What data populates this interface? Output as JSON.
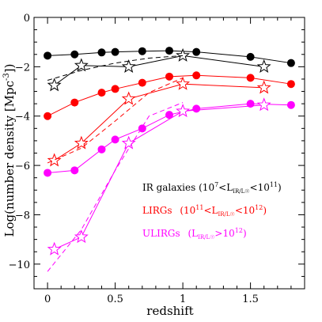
{
  "chart_data": {
    "type": "line",
    "xlabel": "redshift",
    "ylabel": "Log(number density [Mpc",
    "ylabel_exp": "-3",
    "ylabel_close": "])",
    "xlim": [
      -0.1,
      1.9
    ],
    "ylim": [
      -11,
      0
    ],
    "x_major_ticks": [
      0,
      0.5,
      1,
      1.5
    ],
    "x_tick_labels": [
      "0",
      "0.5",
      "1",
      "1.5"
    ],
    "y_major_ticks": [
      0,
      -2,
      -4,
      -6,
      -8,
      -10
    ],
    "y_tick_labels": [
      "0",
      "−2",
      "−4",
      "−6",
      "−8",
      "−10"
    ],
    "grid": false,
    "series": [
      {
        "name": "IR galaxies",
        "color": "#000000",
        "marker": "filled-circle",
        "x": [
          0.0,
          0.2,
          0.4,
          0.5,
          0.7,
          0.9,
          1.1,
          1.5,
          1.8
        ],
        "y": [
          -1.55,
          -1.5,
          -1.42,
          -1.4,
          -1.37,
          -1.35,
          -1.4,
          -1.6,
          -1.85
        ]
      },
      {
        "color": "#000000",
        "marker": "open-star",
        "x": [
          0.05,
          0.25,
          0.6,
          1.0,
          1.6
        ],
        "y": [
          -2.75,
          -1.95,
          -2.0,
          -1.55,
          -2.0
        ]
      },
      {
        "color": "#000000",
        "marker": "none",
        "dash": true,
        "x": [
          0.0,
          0.25,
          0.5,
          0.75,
          1.0
        ],
        "y": [
          -2.55,
          -2.15,
          -1.85,
          -1.65,
          -1.55
        ]
      },
      {
        "name": "LIRGs",
        "color": "#ff0000",
        "marker": "filled-circle",
        "x": [
          0.0,
          0.2,
          0.4,
          0.5,
          0.7,
          0.9,
          1.1,
          1.5,
          1.8
        ],
        "y": [
          -4.0,
          -3.45,
          -3.05,
          -2.9,
          -2.65,
          -2.4,
          -2.35,
          -2.45,
          -2.7
        ]
      },
      {
        "color": "#ff0000",
        "marker": "open-star",
        "x": [
          0.05,
          0.25,
          0.6,
          1.0,
          1.6
        ],
        "y": [
          -5.8,
          -5.1,
          -3.3,
          -2.7,
          -2.85
        ]
      },
      {
        "color": "#ff0000",
        "marker": "none",
        "dash": true,
        "x": [
          0.0,
          0.25,
          0.5,
          0.75,
          1.0
        ],
        "y": [
          -5.9,
          -5.3,
          -4.2,
          -3.05,
          -2.45
        ]
      },
      {
        "name": "ULIRGs",
        "color": "#ff00ff",
        "marker": "filled-circle",
        "x": [
          0.0,
          0.2,
          0.4,
          0.5,
          0.7,
          0.9,
          1.1,
          1.5,
          1.8
        ],
        "y": [
          -6.3,
          -6.2,
          -5.35,
          -4.95,
          -4.5,
          -3.95,
          -3.7,
          -3.5,
          -3.55
        ]
      },
      {
        "color": "#ff00ff",
        "marker": "open-star",
        "x": [
          0.05,
          0.25,
          0.6,
          1.0,
          1.6
        ],
        "y": [
          -9.4,
          -8.9,
          -5.1,
          -3.8,
          -3.55
        ]
      },
      {
        "color": "#ff00ff",
        "marker": "none",
        "dash": true,
        "x": [
          0.0,
          0.25,
          0.5,
          0.75,
          1.0
        ],
        "y": [
          -10.3,
          -8.6,
          -6.2,
          -4.0,
          -3.45
        ]
      }
    ]
  },
  "legend": {
    "ir": {
      "name": "IR galaxies",
      "range_open": "(10",
      "e1": "7",
      "mid1": "<L",
      "sub": "IR/L",
      "sun": "☉",
      "mid2": "<10",
      "e2": "11",
      "close": ")",
      "color": "#000000"
    },
    "lirg": {
      "name": "LIRGs",
      "range_open": "(10",
      "e1": "11",
      "mid1": "<L",
      "sub": "IR/L",
      "sun": "☉",
      "mid2": "<10",
      "e2": "12",
      "close": ")",
      "color": "#ff0000"
    },
    "ulirg": {
      "name": "ULIRGs",
      "range_open": "(L",
      "sub": "IR/L",
      "sun": "☉",
      "mid2": ">10",
      "e2": "12",
      "close": ")",
      "color": "#ff00ff"
    }
  }
}
